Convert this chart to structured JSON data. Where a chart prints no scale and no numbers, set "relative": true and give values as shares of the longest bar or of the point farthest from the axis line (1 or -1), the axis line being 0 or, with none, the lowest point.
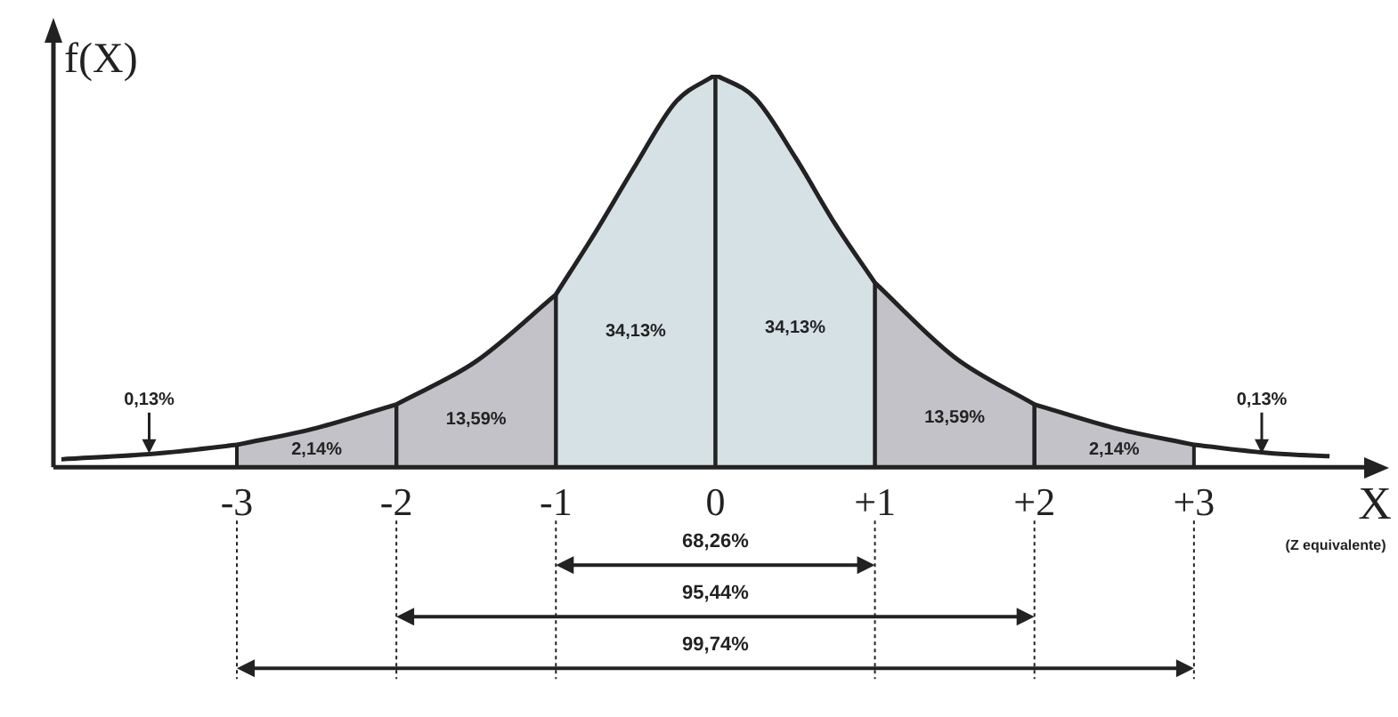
{
  "chart_data": {
    "type": "area",
    "relative": true,
    "xlabel": "X",
    "ylabel": "f(X)",
    "grid": "x",
    "xlim": [
      -4.15,
      4.0
    ],
    "xticks": [
      {
        "value": -3,
        "label": "-3"
      },
      {
        "value": -2,
        "label": "-2"
      },
      {
        "value": -1,
        "label": "-1"
      },
      0,
      {
        "value": 1,
        "label": "+1"
      },
      {
        "value": 2,
        "label": "+2"
      },
      {
        "value": 3,
        "label": "+3"
      }
    ],
    "series": [
      {
        "type": "line",
        "name": "0,13%",
        "color": "#222222",
        "x": [
          -4.1,
          -3.5,
          -3
        ],
        "values": [
          0.02,
          0.035,
          0.057
        ]
      },
      {
        "name": "2,14%",
        "color": "#c2c2c8",
        "x": [
          -3,
          -2.5,
          -2
        ],
        "values": [
          0.057,
          0.1,
          0.16
        ]
      },
      {
        "name": "13,59%",
        "color": "#c2c2c8",
        "x": [
          -2,
          -1.5,
          -1
        ],
        "values": [
          0.16,
          0.27,
          0.44
        ]
      },
      {
        "name": "34,13%",
        "color": "#d6e1e6",
        "x": [
          -1,
          -0.75,
          -0.5,
          -0.25,
          0
        ],
        "values": [
          0.44,
          0.6,
          0.77,
          0.93,
          1
        ]
      },
      {
        "name": "34,13%",
        "color": "#d6e1e6",
        "x": [
          0,
          0.25,
          0.5,
          0.75,
          1
        ],
        "values": [
          1,
          0.94,
          0.79,
          0.62,
          0.47
        ]
      },
      {
        "name": "13,59%",
        "color": "#c2c2c8",
        "x": [
          1,
          1.5,
          2
        ],
        "values": [
          0.47,
          0.28,
          0.16
        ]
      },
      {
        "name": "2,14%",
        "color": "#c2c2c8",
        "x": [
          2,
          2.5,
          3
        ],
        "values": [
          0.16,
          0.1,
          0.057
        ]
      },
      {
        "type": "line",
        "name": "0,13%",
        "color": "#222222",
        "x": [
          3,
          3.5,
          3.85
        ],
        "values": [
          0.057,
          0.035,
          0.028
        ]
      }
    ],
    "ref_lines": [
      {
        "axis": "x",
        "value": -2,
        "color": "#222222"
      },
      {
        "axis": "x",
        "value": 2,
        "color": "#222222"
      }
    ],
    "annotations": [
      "68,26%",
      "95,44%",
      "99,74%",
      "(Z equivalente)"
    ]
  }
}
